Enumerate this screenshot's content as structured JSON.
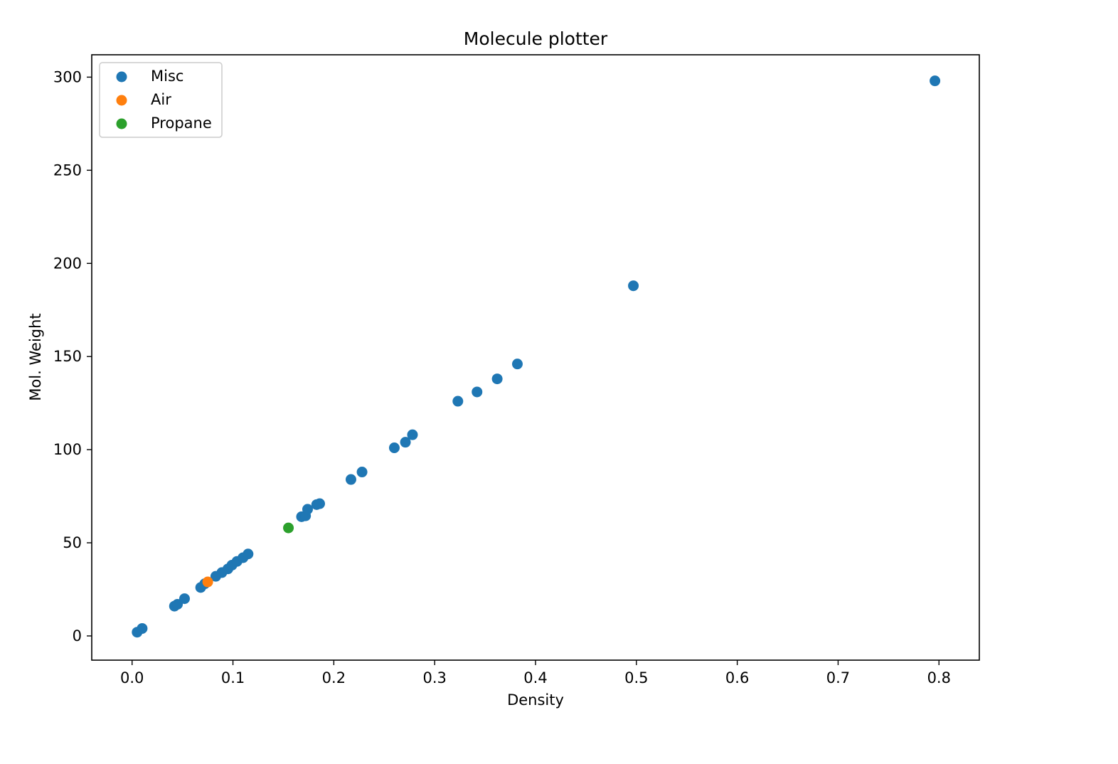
{
  "chart_data": {
    "type": "scatter",
    "title": "Molecule plotter",
    "xlabel": "Density",
    "ylabel": "Mol. Weight",
    "xlim": [
      -0.04,
      0.84
    ],
    "ylim": [
      -13,
      312
    ],
    "xticks": [
      {
        "value": 0.0,
        "label": "0.0"
      },
      {
        "value": 0.1,
        "label": "0.1"
      },
      {
        "value": 0.2,
        "label": "0.2"
      },
      {
        "value": 0.3,
        "label": "0.3"
      },
      {
        "value": 0.4,
        "label": "0.4"
      },
      {
        "value": 0.5,
        "label": "0.5"
      },
      {
        "value": 0.6,
        "label": "0.6"
      },
      {
        "value": 0.7,
        "label": "0.7"
      },
      {
        "value": 0.8,
        "label": "0.8"
      }
    ],
    "yticks": [
      {
        "value": 0,
        "label": "0"
      },
      {
        "value": 50,
        "label": "50"
      },
      {
        "value": 100,
        "label": "100"
      },
      {
        "value": 150,
        "label": "150"
      },
      {
        "value": 200,
        "label": "200"
      },
      {
        "value": 250,
        "label": "250"
      },
      {
        "value": 300,
        "label": "300"
      }
    ],
    "grid": false,
    "legend_position": "top-left",
    "series": [
      {
        "name": "Misc",
        "color": "#1f77b4",
        "points": [
          [
            0.005,
            2
          ],
          [
            0.01,
            4
          ],
          [
            0.042,
            16
          ],
          [
            0.045,
            17
          ],
          [
            0.052,
            20
          ],
          [
            0.068,
            26
          ],
          [
            0.072,
            28
          ],
          [
            0.083,
            32
          ],
          [
            0.089,
            34
          ],
          [
            0.095,
            36
          ],
          [
            0.099,
            38
          ],
          [
            0.104,
            40
          ],
          [
            0.11,
            42
          ],
          [
            0.115,
            44
          ],
          [
            0.168,
            64
          ],
          [
            0.172,
            64.5
          ],
          [
            0.174,
            68
          ],
          [
            0.183,
            70.5
          ],
          [
            0.186,
            71
          ],
          [
            0.217,
            84
          ],
          [
            0.228,
            88
          ],
          [
            0.26,
            101
          ],
          [
            0.271,
            104
          ],
          [
            0.278,
            108
          ],
          [
            0.323,
            126
          ],
          [
            0.342,
            131
          ],
          [
            0.362,
            138
          ],
          [
            0.382,
            146
          ],
          [
            0.497,
            188
          ],
          [
            0.796,
            298
          ]
        ]
      },
      {
        "name": "Air",
        "color": "#ff7f0e",
        "points": [
          [
            0.075,
            29
          ]
        ]
      },
      {
        "name": "Propane",
        "color": "#2ca02c",
        "points": [
          [
            0.155,
            58
          ]
        ]
      }
    ]
  }
}
